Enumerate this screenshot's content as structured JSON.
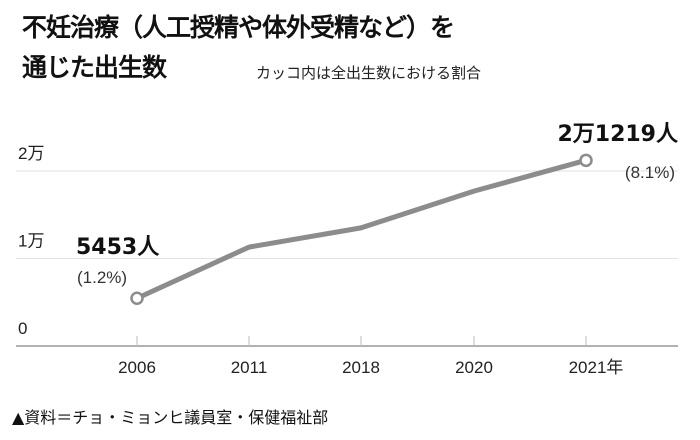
{
  "title_line1": "不妊治療（人工授精や体外受精など）を",
  "title_line2": "通じた出生数",
  "subtitle": "カッコ内は全出生数における割合",
  "source": "▲資料＝チョ・ミョンヒ議員室・保健福祉部",
  "chart_data": {
    "type": "line",
    "categories": [
      "2006",
      "2011",
      "2018",
      "2020",
      "2021年"
    ],
    "values": [
      5453,
      11300,
      13500,
      17700,
      21219
    ],
    "ylim": [
      0,
      20000
    ],
    "yticks": [
      {
        "v": 0,
        "label": "0"
      },
      {
        "v": 10000,
        "label": "1万"
      },
      {
        "v": 20000,
        "label": "2万"
      }
    ],
    "grid": true,
    "line_color": "#8c8c8c",
    "annotations": [
      {
        "index": 0,
        "value_label": "5453人",
        "share_label": "(1.2%)"
      },
      {
        "index": 4,
        "value_label": "2万1219人",
        "share_label": "(8.1%)"
      }
    ]
  }
}
